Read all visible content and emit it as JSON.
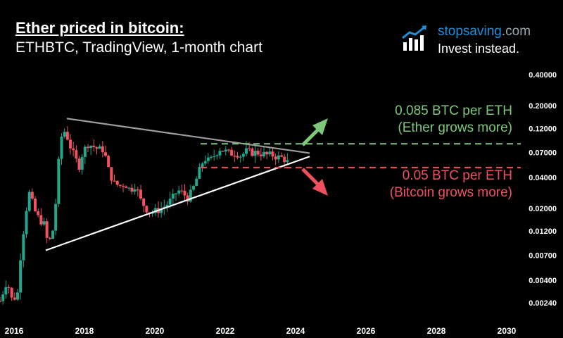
{
  "title": "Ether priced in bitcoin:",
  "subtitle": "ETHBTC, TradingView, 1-month chart",
  "brand": {
    "name_main": "stopsaving",
    "name_tld": ".com",
    "tagline": "Invest instead."
  },
  "annotations": {
    "upper_line1": "0.085 BTC per ETH",
    "upper_line2": "(Ether grows more)",
    "lower_line1": "0.05 BTC per ETH",
    "lower_line2": "(Bitcoin grows more)"
  },
  "colors": {
    "up": "#1fa88e",
    "down": "#ef5360",
    "green": "#7cc77a",
    "red": "#f0505e",
    "trend_upper": "#9e9e9e",
    "trend_lower": "#ffffff"
  },
  "chart_data": {
    "type": "candlestick",
    "title": "Ether priced in bitcoin:",
    "subtitle": "ETHBTC, TradingView, 1-month chart",
    "y_scale": "log",
    "ylim": [
      0.0017,
      0.55
    ],
    "xlim": [
      2015.6,
      2030.4
    ],
    "y_ticks": [
      {
        "v": 0.4,
        "label": "0.40000"
      },
      {
        "v": 0.2,
        "label": "0.20000"
      },
      {
        "v": 0.12,
        "label": "0.12000"
      },
      {
        "v": 0.07,
        "label": "0.07000"
      },
      {
        "v": 0.04,
        "label": "0.04000"
      },
      {
        "v": 0.02,
        "label": "0.02000"
      },
      {
        "v": 0.012,
        "label": "0.01200"
      },
      {
        "v": 0.007,
        "label": "0.00700"
      },
      {
        "v": 0.004,
        "label": "0.00400"
      },
      {
        "v": 0.0024,
        "label": "0.00240"
      }
    ],
    "x_ticks": [
      {
        "v": 2016,
        "label": "2016"
      },
      {
        "v": 2018,
        "label": "2018"
      },
      {
        "v": 2020,
        "label": "2020"
      },
      {
        "v": 2022,
        "label": "2022"
      },
      {
        "v": 2024,
        "label": "2024"
      },
      {
        "v": 2026,
        "label": "2026"
      },
      {
        "v": 2028,
        "label": "2028"
      },
      {
        "v": 2030,
        "label": "2030"
      }
    ],
    "close_path": [
      [
        2015.6,
        0.0025
      ],
      [
        2015.8,
        0.004
      ],
      [
        2015.95,
        0.0025
      ],
      [
        2016.1,
        0.003
      ],
      [
        2016.2,
        0.008
      ],
      [
        2016.35,
        0.02
      ],
      [
        2016.45,
        0.03
      ],
      [
        2016.55,
        0.02
      ],
      [
        2016.7,
        0.016
      ],
      [
        2016.85,
        0.014
      ],
      [
        2016.95,
        0.0095
      ],
      [
        2017.05,
        0.01
      ],
      [
        2017.15,
        0.015
      ],
      [
        2017.25,
        0.05
      ],
      [
        2017.35,
        0.1
      ],
      [
        2017.45,
        0.115
      ],
      [
        2017.6,
        0.08
      ],
      [
        2017.75,
        0.06
      ],
      [
        2017.85,
        0.052
      ],
      [
        2017.95,
        0.07
      ],
      [
        2018.1,
        0.085
      ],
      [
        2018.25,
        0.08
      ],
      [
        2018.4,
        0.075
      ],
      [
        2018.55,
        0.075
      ],
      [
        2018.7,
        0.045
      ],
      [
        2018.85,
        0.035
      ],
      [
        2019.0,
        0.033
      ],
      [
        2019.15,
        0.035
      ],
      [
        2019.3,
        0.03
      ],
      [
        2019.45,
        0.034
      ],
      [
        2019.6,
        0.024
      ],
      [
        2019.75,
        0.02
      ],
      [
        2019.9,
        0.018
      ],
      [
        2020.05,
        0.019
      ],
      [
        2020.2,
        0.02
      ],
      [
        2020.35,
        0.022
      ],
      [
        2020.5,
        0.025
      ],
      [
        2020.65,
        0.03
      ],
      [
        2020.8,
        0.028
      ],
      [
        2020.95,
        0.025
      ],
      [
        2021.1,
        0.032
      ],
      [
        2021.25,
        0.045
      ],
      [
        2021.4,
        0.062
      ],
      [
        2021.5,
        0.058
      ],
      [
        2021.6,
        0.06
      ],
      [
        2021.75,
        0.07
      ],
      [
        2021.85,
        0.076
      ],
      [
        2022.0,
        0.072
      ],
      [
        2022.15,
        0.068
      ],
      [
        2022.3,
        0.07
      ],
      [
        2022.45,
        0.065
      ],
      [
        2022.6,
        0.072
      ],
      [
        2022.75,
        0.07
      ],
      [
        2022.9,
        0.07
      ],
      [
        2023.05,
        0.068
      ],
      [
        2023.2,
        0.066
      ],
      [
        2023.35,
        0.066
      ],
      [
        2023.5,
        0.063
      ],
      [
        2023.65,
        0.062
      ],
      [
        2023.8,
        0.055
      ]
    ],
    "trendlines": [
      {
        "name": "upper",
        "from": [
          2017.5,
          0.15
        ],
        "to": [
          2024.4,
          0.069
        ]
      },
      {
        "name": "lower",
        "from": [
          2016.9,
          0.0078
        ],
        "to": [
          2024.4,
          0.064
        ]
      }
    ],
    "levels": [
      {
        "value": 0.085,
        "label": "0.085 BTC per ETH",
        "from": 2021.3,
        "to": 2030.4
      },
      {
        "value": 0.05,
        "label": "0.05 BTC per ETH",
        "from": 2021.3,
        "to": 2030.4
      }
    ]
  }
}
